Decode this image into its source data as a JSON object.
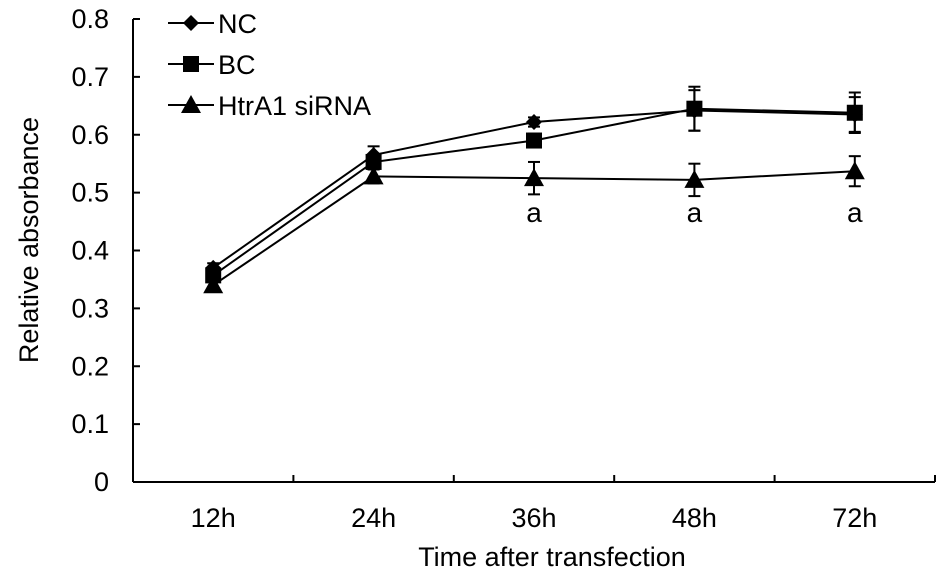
{
  "chart_data": {
    "type": "line",
    "xlabel": "Time after transfection",
    "ylabel": "Relative absorbance",
    "categories": [
      "12h",
      "24h",
      "36h",
      "48h",
      "72h"
    ],
    "ylim": [
      0,
      0.8
    ],
    "yticks": [
      "0",
      "0.1",
      "0.2",
      "0.3",
      "0.4",
      "0.5",
      "0.6",
      "0.7",
      "0.8"
    ],
    "series": [
      {
        "name": "NC",
        "marker": "diamond",
        "values": [
          0.37,
          0.565,
          0.622,
          0.642,
          0.635
        ],
        "errors": [
          0.008,
          0.015,
          0.008,
          0.035,
          0.03
        ]
      },
      {
        "name": "BC",
        "marker": "square",
        "values": [
          0.357,
          0.553,
          0.59,
          0.645,
          0.638
        ],
        "errors": [
          0.008,
          0.012,
          0.012,
          0.038,
          0.035
        ]
      },
      {
        "name": "HtrA1 siRNA",
        "marker": "triangle",
        "values": [
          0.34,
          0.528,
          0.525,
          0.522,
          0.537
        ],
        "errors": [
          0.008,
          0.012,
          0.028,
          0.028,
          0.026
        ]
      }
    ],
    "annotations": [
      {
        "category": "36h",
        "text": "a"
      },
      {
        "category": "48h",
        "text": "a"
      },
      {
        "category": "72h",
        "text": "a"
      }
    ],
    "legend_position": "top-left",
    "grid": false
  }
}
